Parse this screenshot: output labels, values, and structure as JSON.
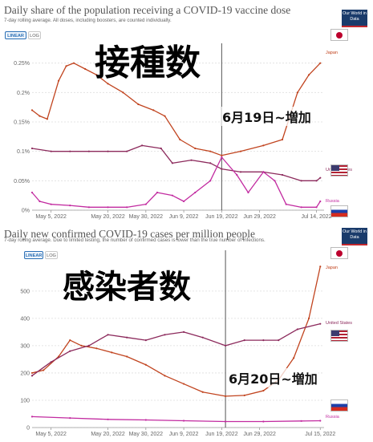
{
  "chart_data": [
    {
      "type": "line",
      "title": "Daily share of the population receiving a COVID-19 vaccine dose",
      "subtitle": "7-day rolling average. All doses, including boosters, are counted individually.",
      "scale_buttons": [
        "LINEAR",
        "LOG"
      ],
      "active_scale": "LINEAR",
      "logo": "Our World in Data",
      "overlay_title": "接種数",
      "annotation": "6月19日~増加",
      "vertical_marker": "2022-06-19",
      "x_ticks": [
        "May 5, 2022",
        "May 20, 2022",
        "May 30, 2022",
        "Jun 9, 2022",
        "Jun 19, 2022",
        "Jun 29, 2022",
        "Jul 14, 2022"
      ],
      "y_ticks": [
        "0%",
        "0.05%",
        "0.1%",
        "0.15%",
        "0.2%",
        "0.25%"
      ],
      "ylim": [
        0,
        0.27
      ],
      "grid": true,
      "series": [
        {
          "name": "Japan",
          "color": "#c1441f",
          "flag": "jp-flag-icon",
          "x": [
            "2022-04-30",
            "2022-05-02",
            "2022-05-04",
            "2022-05-07",
            "2022-05-09",
            "2022-05-11",
            "2022-05-14",
            "2022-05-17",
            "2022-05-20",
            "2022-05-24",
            "2022-05-28",
            "2022-06-01",
            "2022-06-04",
            "2022-06-08",
            "2022-06-12",
            "2022-06-16",
            "2022-06-19",
            "2022-06-24",
            "2022-06-30",
            "2022-07-05",
            "2022-07-09",
            "2022-07-12",
            "2022-07-15"
          ],
          "values": [
            0.17,
            0.16,
            0.155,
            0.22,
            0.245,
            0.25,
            0.24,
            0.23,
            0.215,
            0.2,
            0.18,
            0.17,
            0.16,
            0.12,
            0.105,
            0.1,
            0.093,
            0.1,
            0.11,
            0.12,
            0.2,
            0.23,
            0.25
          ]
        },
        {
          "name": "United States",
          "color": "#8c2a5c",
          "flag": "us-flag-icon",
          "x": [
            "2022-04-30",
            "2022-05-05",
            "2022-05-10",
            "2022-05-15",
            "2022-05-20",
            "2022-05-25",
            "2022-05-29",
            "2022-06-03",
            "2022-06-06",
            "2022-06-11",
            "2022-06-16",
            "2022-06-19",
            "2022-06-24",
            "2022-06-30",
            "2022-07-05",
            "2022-07-10",
            "2022-07-14",
            "2022-07-15"
          ],
          "values": [
            0.105,
            0.1,
            0.1,
            0.1,
            0.1,
            0.1,
            0.11,
            0.105,
            0.08,
            0.085,
            0.08,
            0.07,
            0.065,
            0.065,
            0.06,
            0.05,
            0.05,
            0.055
          ]
        },
        {
          "name": "Russia",
          "color": "#c22ba0",
          "flag": "ru-flag-icon",
          "x": [
            "2022-04-30",
            "2022-05-02",
            "2022-05-05",
            "2022-05-10",
            "2022-05-15",
            "2022-05-20",
            "2022-05-25",
            "2022-05-30",
            "2022-06-02",
            "2022-06-06",
            "2022-06-09",
            "2022-06-12",
            "2022-06-16",
            "2022-06-19",
            "2022-06-23",
            "2022-06-26",
            "2022-06-30",
            "2022-07-03",
            "2022-07-06",
            "2022-07-10",
            "2022-07-14",
            "2022-07-15"
          ],
          "values": [
            0.03,
            0.015,
            0.01,
            0.008,
            0.005,
            0.005,
            0.005,
            0.01,
            0.03,
            0.025,
            0.015,
            0.03,
            0.05,
            0.09,
            0.06,
            0.03,
            0.065,
            0.05,
            0.01,
            0.005,
            0.005,
            0.015
          ]
        }
      ]
    },
    {
      "type": "line",
      "title": "Daily new confirmed COVID-19 cases per million people",
      "subtitle": "7-day rolling average. Due to limited testing, the number of confirmed cases is lower than the true number of infections.",
      "scale_buttons": [
        "LINEAR",
        "LOG"
      ],
      "active_scale": "LINEAR",
      "logo": "Our World in Data",
      "overlay_title": "感染者数",
      "annotation": "6月20日~増加",
      "vertical_marker": "2022-06-20",
      "x_ticks": [
        "May 5, 2022",
        "May 20, 2022",
        "May 30, 2022",
        "Jun 9, 2022",
        "Jun 19, 2022",
        "Jun 29, 2022",
        "Jul 15, 2022"
      ],
      "y_ticks": [
        "0",
        "100",
        "200",
        "300",
        "400",
        "500"
      ],
      "ylim": [
        0,
        620
      ],
      "grid": true,
      "series": [
        {
          "name": "Japan",
          "color": "#c1441f",
          "flag": "jp-flag-icon",
          "x": [
            "2022-04-30",
            "2022-05-03",
            "2022-05-07",
            "2022-05-10",
            "2022-05-13",
            "2022-05-17",
            "2022-05-21",
            "2022-05-25",
            "2022-05-30",
            "2022-06-04",
            "2022-06-09",
            "2022-06-14",
            "2022-06-20",
            "2022-06-25",
            "2022-06-30",
            "2022-07-04",
            "2022-07-08",
            "2022-07-12",
            "2022-07-15"
          ],
          "values": [
            200,
            210,
            260,
            320,
            300,
            290,
            275,
            260,
            230,
            190,
            160,
            130,
            115,
            118,
            135,
            175,
            255,
            400,
            590
          ]
        },
        {
          "name": "United States",
          "color": "#8c2a5c",
          "flag": "us-flag-icon",
          "x": [
            "2022-04-30",
            "2022-05-05",
            "2022-05-10",
            "2022-05-15",
            "2022-05-20",
            "2022-05-25",
            "2022-05-30",
            "2022-06-04",
            "2022-06-09",
            "2022-06-14",
            "2022-06-20",
            "2022-06-25",
            "2022-06-30",
            "2022-07-04",
            "2022-07-09",
            "2022-07-15"
          ],
          "values": [
            190,
            240,
            280,
            300,
            340,
            330,
            320,
            340,
            350,
            330,
            300,
            320,
            320,
            320,
            360,
            380
          ]
        },
        {
          "name": "Russia",
          "color": "#c22ba0",
          "flag": "ru-flag-icon",
          "x": [
            "2022-04-30",
            "2022-05-10",
            "2022-05-20",
            "2022-05-30",
            "2022-06-09",
            "2022-06-20",
            "2022-06-30",
            "2022-07-10",
            "2022-07-15"
          ],
          "values": [
            40,
            35,
            30,
            28,
            25,
            22,
            22,
            24,
            25
          ]
        }
      ]
    }
  ]
}
